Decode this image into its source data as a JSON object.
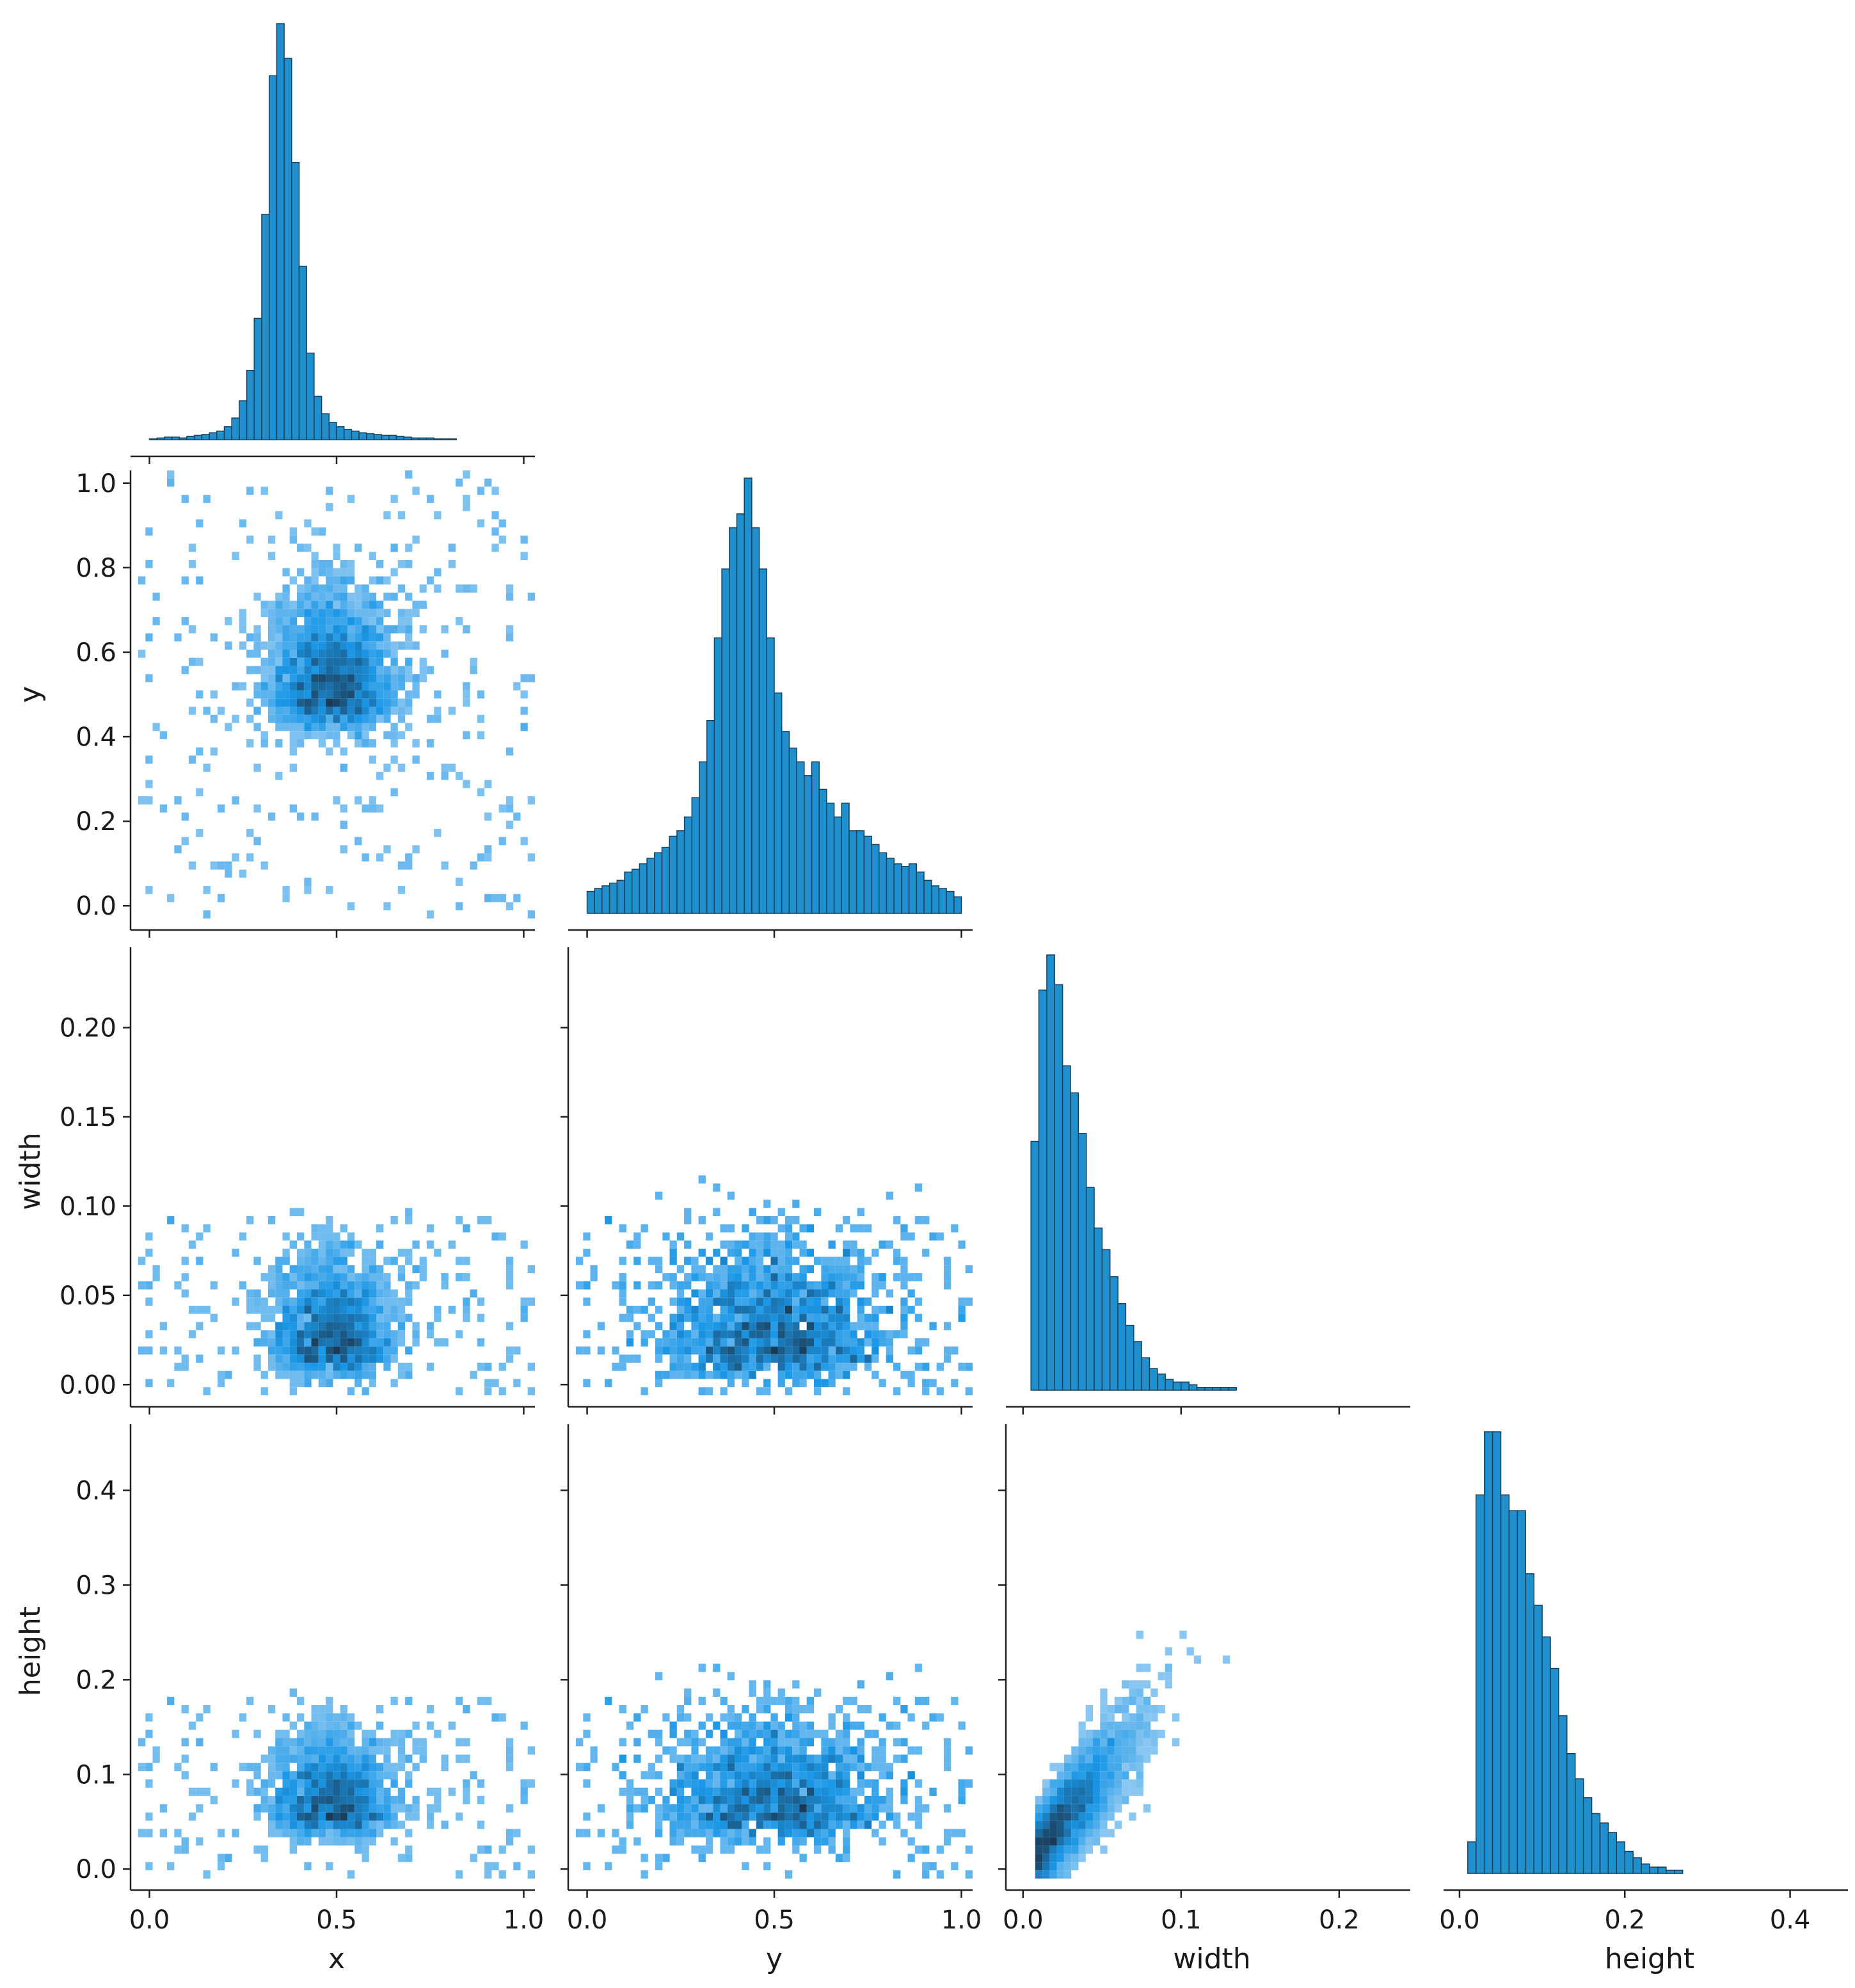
{
  "chart_data": {
    "type": "pairplot-corner",
    "variables": [
      "x",
      "y",
      "width",
      "height"
    ],
    "diag_type": "histogram",
    "offdiag_type": "2d-histogram-heatmap",
    "grid": false,
    "colors": {
      "bar_fill": "#1f8fcd",
      "bar_edge": "#17415c",
      "heat_low": "#a9d4f5",
      "heat_mid": "#1a97e6",
      "heat_high": "#1a3a55"
    },
    "axes": {
      "x": {
        "label": "x",
        "lim": [
          -0.03,
          1.03
        ],
        "ticks": [
          0.0,
          0.5,
          1.0
        ],
        "tick_labels": [
          "0.0",
          "0.5",
          "1.0"
        ]
      },
      "y": {
        "label": "y",
        "lim": [
          -0.03,
          1.03
        ],
        "ticks": [
          0.0,
          0.2,
          0.4,
          0.6,
          0.8,
          1.0
        ],
        "tick_labels": [
          "0.0",
          "0.2",
          "0.4",
          "0.6",
          "0.8",
          "1.0"
        ],
        "x_ticks": [
          0.0,
          0.5,
          1.0
        ],
        "x_tick_labels": [
          "0.0",
          "0.5",
          "1.0"
        ]
      },
      "width": {
        "label": "width",
        "lim": [
          -0.006,
          0.245
        ],
        "ticks": [
          0.0,
          0.05,
          0.1,
          0.15,
          0.2
        ],
        "tick_labels": [
          "0.00",
          "0.05",
          "0.10",
          "0.15",
          "0.20"
        ],
        "x_ticks": [
          0.0,
          0.1,
          0.2
        ],
        "x_tick_labels": [
          "0.0",
          "0.1",
          "0.2"
        ]
      },
      "height": {
        "label": "height",
        "lim": [
          -0.01,
          0.47
        ],
        "ticks": [
          0.0,
          0.1,
          0.2,
          0.3,
          0.4
        ],
        "tick_labels": [
          "0.0",
          "0.1",
          "0.2",
          "0.3",
          "0.4"
        ],
        "x_ticks": [
          0.0,
          0.2,
          0.4
        ],
        "x_tick_labels": [
          "0.0",
          "0.2",
          "0.4"
        ]
      }
    },
    "diagonal": {
      "x": {
        "bin_start": 0.0,
        "bin_width": 0.02,
        "counts": [
          1,
          2,
          3,
          3,
          2,
          4,
          5,
          6,
          8,
          10,
          15,
          25,
          45,
          80,
          140,
          260,
          420,
          480,
          440,
          320,
          200,
          100,
          50,
          30,
          20,
          15,
          12,
          10,
          8,
          7,
          6,
          5,
          5,
          4,
          3,
          2,
          2,
          2,
          1,
          1,
          1,
          0,
          0,
          0,
          0,
          0,
          0,
          0,
          0,
          0
        ]
      },
      "y": {
        "bin_start": 0.0,
        "bin_width": 0.02,
        "counts": [
          8,
          9,
          10,
          11,
          12,
          15,
          16,
          18,
          20,
          22,
          24,
          28,
          30,
          35,
          42,
          55,
          70,
          100,
          125,
          140,
          145,
          158,
          140,
          125,
          100,
          80,
          66,
          60,
          55,
          50,
          55,
          45,
          40,
          35,
          40,
          30,
          30,
          28,
          25,
          22,
          20,
          18,
          17,
          18,
          15,
          12,
          10,
          9,
          8,
          6
        ]
      },
      "width": {
        "bin_start": 0.005,
        "bin_width": 0.005,
        "counts": [
          92,
          148,
          161,
          150,
          120,
          110,
          95,
          75,
          60,
          52,
          42,
          32,
          24,
          18,
          12,
          8,
          6,
          4,
          3,
          3,
          2,
          1,
          1,
          1,
          1,
          1,
          0,
          0,
          0,
          0,
          0,
          0,
          0,
          0,
          0,
          0,
          0,
          0,
          0,
          0,
          0,
          0,
          0,
          0,
          0
        ]
      },
      "height": {
        "bin_start": 0.01,
        "bin_width": 0.01,
        "counts": [
          10,
          120,
          140,
          140,
          120,
          115,
          115,
          95,
          85,
          75,
          65,
          50,
          38,
          30,
          24,
          19,
          16,
          13,
          10,
          7,
          5,
          3,
          2,
          2,
          1,
          1,
          0,
          0,
          0,
          0,
          0,
          0,
          0,
          0,
          0,
          0,
          0,
          0,
          0,
          0,
          0,
          0,
          0,
          0,
          0,
          0
        ]
      }
    },
    "offdiagonal": [
      {
        "row": "y",
        "col": "x",
        "center": [
          0.49,
          0.49
        ],
        "spread": [
          0.08,
          0.12
        ],
        "pattern": "concentrated center, sparse uniform outliers"
      },
      {
        "row": "width",
        "col": "x",
        "center": [
          0.49,
          0.02
        ],
        "spread": [
          0.08,
          0.025
        ],
        "pattern": "triangular, dense near width 0.02"
      },
      {
        "row": "width",
        "col": "y",
        "center": [
          0.5,
          0.02
        ],
        "spread": [
          0.15,
          0.03
        ],
        "pattern": "triangular, dense near width 0.02"
      },
      {
        "row": "height",
        "col": "x",
        "center": [
          0.49,
          0.06
        ],
        "spread": [
          0.08,
          0.04
        ],
        "pattern": "triangular, dense near height 0.06"
      },
      {
        "row": "height",
        "col": "y",
        "center": [
          0.5,
          0.06
        ],
        "spread": [
          0.15,
          0.05
        ],
        "pattern": "dense near height 0.06"
      },
      {
        "row": "height",
        "col": "width",
        "center": [
          0.02,
          0.04
        ],
        "spread": [
          0.03,
          0.05
        ],
        "pattern": "positive linear correlation, height ≈ 2×width"
      }
    ]
  }
}
